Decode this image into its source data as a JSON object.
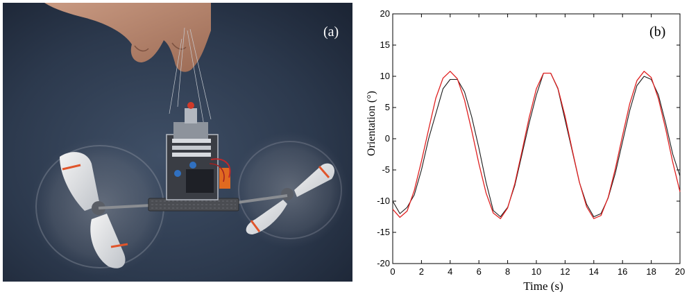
{
  "figure": {
    "left_panel": {
      "label": "(a)"
    },
    "right_panel": {
      "label": "(b)"
    }
  },
  "chart_data": {
    "type": "line",
    "title": "",
    "xlabel": "Time  (s)",
    "ylabel": "Orientation (°)",
    "xlim": [
      0,
      20
    ],
    "ylim": [
      -20,
      20
    ],
    "x_ticks": [
      0,
      2,
      4,
      6,
      8,
      10,
      12,
      14,
      16,
      18,
      20
    ],
    "y_ticks": [
      -20,
      -15,
      -10,
      -5,
      0,
      5,
      10,
      15,
      20
    ],
    "grid": false,
    "legend": "none",
    "series": [
      {
        "style": "smooth sinusoid",
        "color": "#e02020",
        "x": [
          0,
          0.5,
          1,
          1.5,
          2,
          2.5,
          3,
          3.5,
          4,
          4.5,
          5,
          5.5,
          6,
          6.5,
          7,
          7.5,
          8,
          8.5,
          9,
          9.5,
          10,
          10.5,
          11,
          11.5,
          12,
          12.5,
          13,
          13.5,
          14,
          14.5,
          15,
          15.5,
          16,
          16.5,
          17,
          17.5,
          18,
          18.5,
          19,
          19.5,
          20
        ],
        "y": [
          -11.3,
          -12.6,
          -11.6,
          -8.3,
          -3.6,
          1.5,
          6.5,
          9.7,
          10.8,
          9.6,
          6.2,
          1.3,
          -4.0,
          -8.7,
          -11.9,
          -12.8,
          -11.1,
          -7.2,
          -2.0,
          3.4,
          8.0,
          10.5,
          10.5,
          8.1,
          3.6,
          -1.8,
          -7.0,
          -10.9,
          -12.8,
          -12.3,
          -9.4,
          -4.8,
          0.5,
          5.6,
          9.3,
          10.8,
          9.8,
          6.4,
          1.6,
          -3.8,
          -8.5
        ]
      },
      {
        "style": "noisy measurement",
        "color": "#1a1a1a",
        "x": [
          0,
          0.5,
          1,
          1.5,
          2,
          2.5,
          3,
          3.5,
          4,
          4.5,
          5,
          5.5,
          6,
          6.5,
          7,
          7.5,
          8,
          8.5,
          9,
          9.5,
          10,
          10.5,
          11,
          11.5,
          12,
          12.5,
          13,
          13.5,
          14,
          14.5,
          15,
          15.5,
          16,
          16.5,
          17,
          17.5,
          18,
          18.5,
          19,
          19.5,
          20
        ],
        "y": [
          -10.0,
          -12.0,
          -11.0,
          -9.0,
          -5.0,
          0.0,
          4.0,
          8.0,
          9.5,
          9.5,
          7.5,
          3.5,
          -1.5,
          -7.0,
          -11.5,
          -12.5,
          -11.0,
          -7.5,
          -2.5,
          2.5,
          7.0,
          10.5,
          10.5,
          8.0,
          3.0,
          -2.0,
          -7.0,
          -10.5,
          -12.5,
          -12.0,
          -9.5,
          -5.5,
          -0.5,
          4.5,
          8.5,
          10.0,
          9.5,
          7.0,
          2.5,
          -2.5,
          -6.0
        ]
      }
    ]
  }
}
